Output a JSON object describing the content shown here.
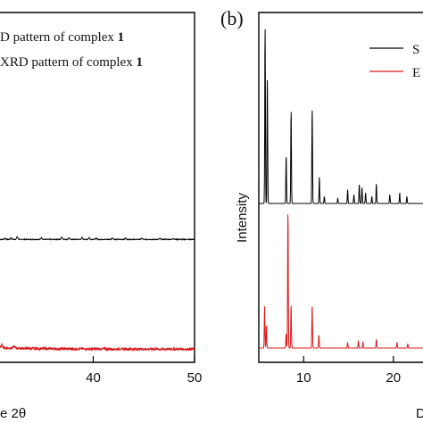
{
  "chart_data": [
    {
      "panel": "a",
      "type": "line",
      "xlabel_fragment": "e 2θ",
      "x_ticks": [
        40,
        50
      ],
      "xlim": [
        30.8,
        50
      ],
      "grid": false,
      "legend_placement": "top-right",
      "legend_entries": [
        {
          "fragment": "D pattern of complex ",
          "bold": "1"
        },
        {
          "fragment": "XRD pattern of complex ",
          "bold": "1"
        }
      ],
      "series": [
        {
          "color": "#000000",
          "style": "noisy-baseline",
          "baseline": 0.62,
          "noise": 0.012,
          "peaks": [
            [
              31.3,
              0.04
            ],
            [
              31.9,
              0.05
            ],
            [
              32.5,
              0.09
            ],
            [
              34.9,
              0.05
            ],
            [
              36.9,
              0.08
            ],
            [
              37.6,
              0.05
            ],
            [
              38.9,
              0.06
            ],
            [
              39.6,
              0.06
            ],
            [
              40.3,
              0.04
            ],
            [
              41.9,
              0.05
            ],
            [
              43.2,
              0.04
            ],
            [
              44.8,
              0.035
            ],
            [
              46.6,
              0.03
            ],
            [
              47.9,
              0.03
            ]
          ]
        },
        {
          "color": "#d7191c",
          "style": "noisy-baseline",
          "baseline": 0.22,
          "noise": 0.035,
          "decay": 0.04,
          "peaks": [
            [
              31.0,
              0.09
            ],
            [
              32.2,
              0.05
            ]
          ]
        }
      ]
    },
    {
      "panel": "b",
      "type": "line",
      "ylabel": "Intensity",
      "x_ticks": [
        10,
        20
      ],
      "xlim": [
        5,
        23.3
      ],
      "grid": false,
      "legend_placement": "top-right",
      "legend_entries": [
        {
          "fragment": "S"
        },
        {
          "fragment": "E"
        }
      ],
      "series": [
        {
          "color": "#000000",
          "style": "sharp-peaks",
          "baseline": 0.0,
          "peaks": [
            [
              5.7,
              1.0
            ],
            [
              5.95,
              0.72
            ],
            [
              8.05,
              0.27
            ],
            [
              8.6,
              0.53
            ],
            [
              10.95,
              0.55
            ],
            [
              11.75,
              0.15
            ],
            [
              12.3,
              0.04
            ],
            [
              13.8,
              0.03
            ],
            [
              14.9,
              0.08
            ],
            [
              15.6,
              0.05
            ],
            [
              16.2,
              0.11
            ],
            [
              16.5,
              0.09
            ],
            [
              16.9,
              0.06
            ],
            [
              17.6,
              0.04
            ],
            [
              18.1,
              0.11
            ],
            [
              19.6,
              0.05
            ],
            [
              20.7,
              0.06
            ],
            [
              21.5,
              0.04
            ]
          ]
        },
        {
          "color": "#d7191c",
          "style": "sharp-peaks",
          "baseline": 0.0,
          "peaks": [
            [
              5.65,
              0.29
            ],
            [
              5.85,
              0.16
            ],
            [
              8.05,
              0.1
            ],
            [
              8.25,
              0.95
            ],
            [
              8.6,
              0.3
            ],
            [
              10.95,
              0.3
            ],
            [
              11.7,
              0.09
            ],
            [
              14.9,
              0.04
            ],
            [
              16.1,
              0.05
            ],
            [
              16.6,
              0.04
            ],
            [
              18.1,
              0.06
            ],
            [
              20.4,
              0.04
            ],
            [
              21.6,
              0.03
            ]
          ]
        }
      ]
    }
  ],
  "panel_b_tag": "(b)",
  "panel_b_xlabel_fragment": "D"
}
